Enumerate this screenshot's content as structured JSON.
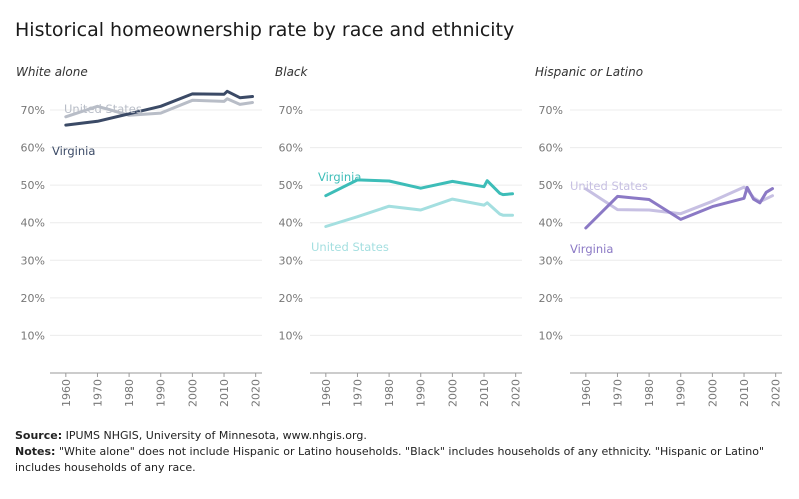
{
  "title": "Historical homeownership rate by race and ethnicity",
  "footer": {
    "source_label": "Source:",
    "source_text": "IPUMS NHGIS, University of Minnesota, www.nhgis.org.",
    "notes_label": "Notes:",
    "notes_text": "\"White alone\" does not include Hispanic or Latino households. \"Black\" includes households of any ethnicity. \"Hispanic or Latino\" includes households of any race."
  },
  "chart_data": [
    {
      "type": "line",
      "title": "White alone",
      "x_ticks": [
        1960,
        1970,
        1980,
        1990,
        2000,
        2010,
        2020
      ],
      "y_ticks": [
        "10%",
        "20%",
        "30%",
        "40%",
        "50%",
        "60%",
        "70%"
      ],
      "y_tick_values": [
        10,
        20,
        30,
        40,
        50,
        60,
        70
      ],
      "xlim": [
        1955,
        2022
      ],
      "ylim": [
        0,
        78
      ],
      "series": [
        {
          "name": "United States",
          "color": "#b8bdc7",
          "x": [
            1960,
            1970,
            1980,
            1990,
            2000,
            2010,
            2011,
            2015,
            2019
          ],
          "y": [
            68.2,
            71.0,
            68.6,
            69.2,
            72.6,
            72.3,
            73.0,
            71.5,
            72.0
          ]
        },
        {
          "name": "Virginia",
          "color": "#3b4a66",
          "x": [
            1960,
            1970,
            1980,
            1990,
            2000,
            2010,
            2011,
            2015,
            2019
          ],
          "y": [
            66.0,
            67.0,
            69.0,
            71.0,
            74.3,
            74.2,
            75.0,
            73.3,
            73.6
          ]
        }
      ]
    },
    {
      "type": "line",
      "title": "Black",
      "x_ticks": [
        1960,
        1970,
        1980,
        1990,
        2000,
        2010,
        2020
      ],
      "y_ticks": [
        "10%",
        "20%",
        "30%",
        "40%",
        "50%",
        "60%",
        "70%"
      ],
      "y_tick_values": [
        10,
        20,
        30,
        40,
        50,
        60,
        70
      ],
      "xlim": [
        1955,
        2022
      ],
      "ylim": [
        0,
        78
      ],
      "series": [
        {
          "name": "United States",
          "color": "#a4dfe0",
          "x": [
            1960,
            1970,
            1980,
            1990,
            2000,
            2010,
            2011,
            2015,
            2016,
            2019
          ],
          "y": [
            39.0,
            41.6,
            44.4,
            43.4,
            46.3,
            44.7,
            45.3,
            42.3,
            42.0,
            42.0
          ]
        },
        {
          "name": "Virginia",
          "color": "#3dbdb8",
          "x": [
            1960,
            1970,
            1980,
            1990,
            2000,
            2010,
            2011,
            2015,
            2016,
            2019
          ],
          "y": [
            47.2,
            51.4,
            51.1,
            49.2,
            51.0,
            49.6,
            51.2,
            47.8,
            47.5,
            47.7
          ]
        }
      ]
    },
    {
      "type": "line",
      "title": "Hispanic or Latino",
      "x_ticks": [
        1960,
        1970,
        1980,
        1990,
        2000,
        2010,
        2020
      ],
      "y_ticks": [
        "10%",
        "20%",
        "30%",
        "40%",
        "50%",
        "60%",
        "70%"
      ],
      "y_tick_values": [
        10,
        20,
        30,
        40,
        50,
        60,
        70
      ],
      "xlim": [
        1955,
        2022
      ],
      "ylim": [
        0,
        78
      ],
      "series": [
        {
          "name": "United States",
          "color": "#c7c0e3",
          "x": [
            1960,
            1970,
            1980,
            1990,
            2000,
            2010,
            2011,
            2013,
            2015,
            2019
          ],
          "y": [
            49.0,
            43.5,
            43.4,
            42.4,
            45.7,
            49.5,
            48.8,
            46.7,
            45.6,
            47.2
          ]
        },
        {
          "name": "Virginia",
          "color": "#8b79c5",
          "x": [
            1960,
            1970,
            1980,
            1990,
            2000,
            2010,
            2011,
            2013,
            2015,
            2017,
            2019
          ],
          "y": [
            38.6,
            47.0,
            46.2,
            40.9,
            44.3,
            46.5,
            49.4,
            46.3,
            45.3,
            48.1,
            49.1
          ]
        }
      ]
    }
  ]
}
